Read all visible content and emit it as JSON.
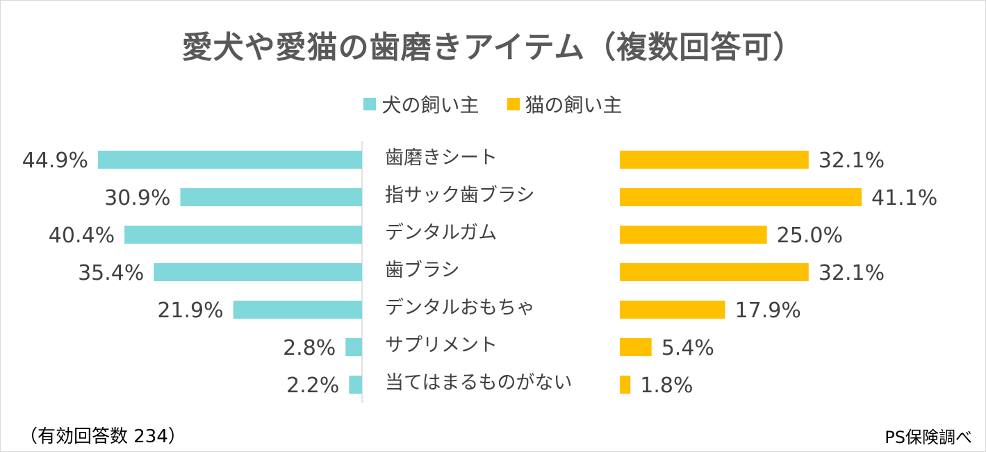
{
  "chart_data": {
    "type": "bar",
    "orientation": "horizontal-butterfly",
    "title": "愛犬や愛猫の歯磨きアイテム（複数回答可）",
    "categories": [
      "歯磨きシート",
      "指サック歯ブラシ",
      "デンタルガム",
      "歯ブラシ",
      "デンタルおもちゃ",
      "サプリメント",
      "当てはまるものがない"
    ],
    "series": [
      {
        "name": "犬の飼い主",
        "color": "#80d8db",
        "values": [
          44.9,
          30.9,
          40.4,
          35.4,
          21.9,
          2.8,
          2.2
        ],
        "labels": [
          "44.9%",
          "30.9%",
          "40.4%",
          "35.4%",
          "21.9%",
          "2.8%",
          "2.2%"
        ]
      },
      {
        "name": "猫の飼い主",
        "color": "#ffc000",
        "values": [
          32.1,
          41.1,
          25.0,
          32.1,
          17.9,
          5.4,
          1.8
        ],
        "labels": [
          "32.1%",
          "41.1%",
          "25.0%",
          "32.1%",
          "17.9%",
          "5.4%",
          "1.8%"
        ]
      }
    ],
    "legend_position": "top-center"
  },
  "footer": {
    "note": "（有効回答数 234）",
    "source": "PS保険調べ"
  }
}
